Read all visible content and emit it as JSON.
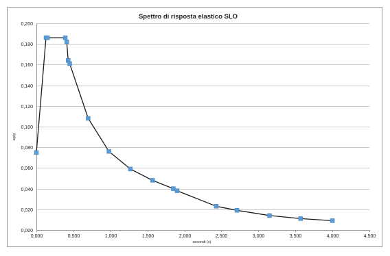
{
  "chart_data": {
    "type": "line",
    "title": "Spettro di risposta elastico SLO",
    "xlabel": "secondi (s)",
    "ylabel": "ag/g",
    "xlim": [
      0,
      4.5
    ],
    "ylim": [
      0,
      0.2
    ],
    "x_ticks": [
      "0,000",
      "0,500",
      "1,000",
      "1,500",
      "2,000",
      "2,500",
      "3,000",
      "3,500",
      "4,000",
      "4,500"
    ],
    "y_ticks": [
      "0,000",
      "0,020",
      "0,040",
      "0,060",
      "0,080",
      "0,100",
      "0,120",
      "0,140",
      "0,160",
      "0,180",
      "0,200"
    ],
    "grid": "horizontal",
    "legend": "none",
    "colors": {
      "line": "#1a1a1a",
      "marker": "#5b9bd5",
      "grid": "#c8c8c8",
      "border": "#9a9a9a"
    },
    "series": [
      {
        "x": [
          0.0,
          0.13,
          0.15,
          0.39,
          0.41,
          0.43,
          0.45,
          0.7,
          0.98,
          1.27,
          1.57,
          1.85,
          1.9,
          2.43,
          2.71,
          3.15,
          3.57,
          4.0
        ],
        "y": [
          0.075,
          0.186,
          0.186,
          0.186,
          0.182,
          0.164,
          0.161,
          0.108,
          0.076,
          0.059,
          0.048,
          0.04,
          0.038,
          0.023,
          0.019,
          0.014,
          0.011,
          0.009
        ]
      }
    ]
  }
}
